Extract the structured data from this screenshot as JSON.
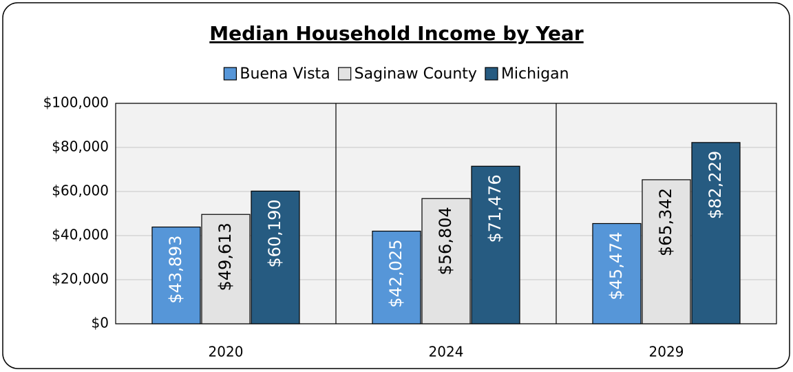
{
  "chart_data": {
    "type": "bar",
    "title": "Median Household Income by Year",
    "categories": [
      "2020",
      "2024",
      "2029"
    ],
    "series": [
      {
        "name": "Buena Vista",
        "color": "#5696d8",
        "values": [
          43893,
          42025,
          45474
        ],
        "value_labels": [
          "$43,893",
          "$42,025",
          "$45,474"
        ]
      },
      {
        "name": "Saginaw County",
        "color": "#e3e3e3",
        "values": [
          49613,
          56804,
          65342
        ],
        "value_labels": [
          "$49,613",
          "$56,804",
          "$65,342"
        ]
      },
      {
        "name": "Michigan",
        "color": "#265b81",
        "values": [
          60190,
          71476,
          82229
        ],
        "value_labels": [
          "$60,190",
          "$71,476",
          "$82,229"
        ]
      }
    ],
    "ylim": [
      0,
      100000
    ],
    "yticks": [
      {
        "value": 0,
        "label": "$0"
      },
      {
        "value": 20000,
        "label": "$20,000"
      },
      {
        "value": 40000,
        "label": "$40,000"
      },
      {
        "value": 60000,
        "label": "$60,000"
      },
      {
        "value": 80000,
        "label": "$80,000"
      },
      {
        "value": 100000,
        "label": "$100,000"
      }
    ],
    "grid": true,
    "legend": "top"
  }
}
